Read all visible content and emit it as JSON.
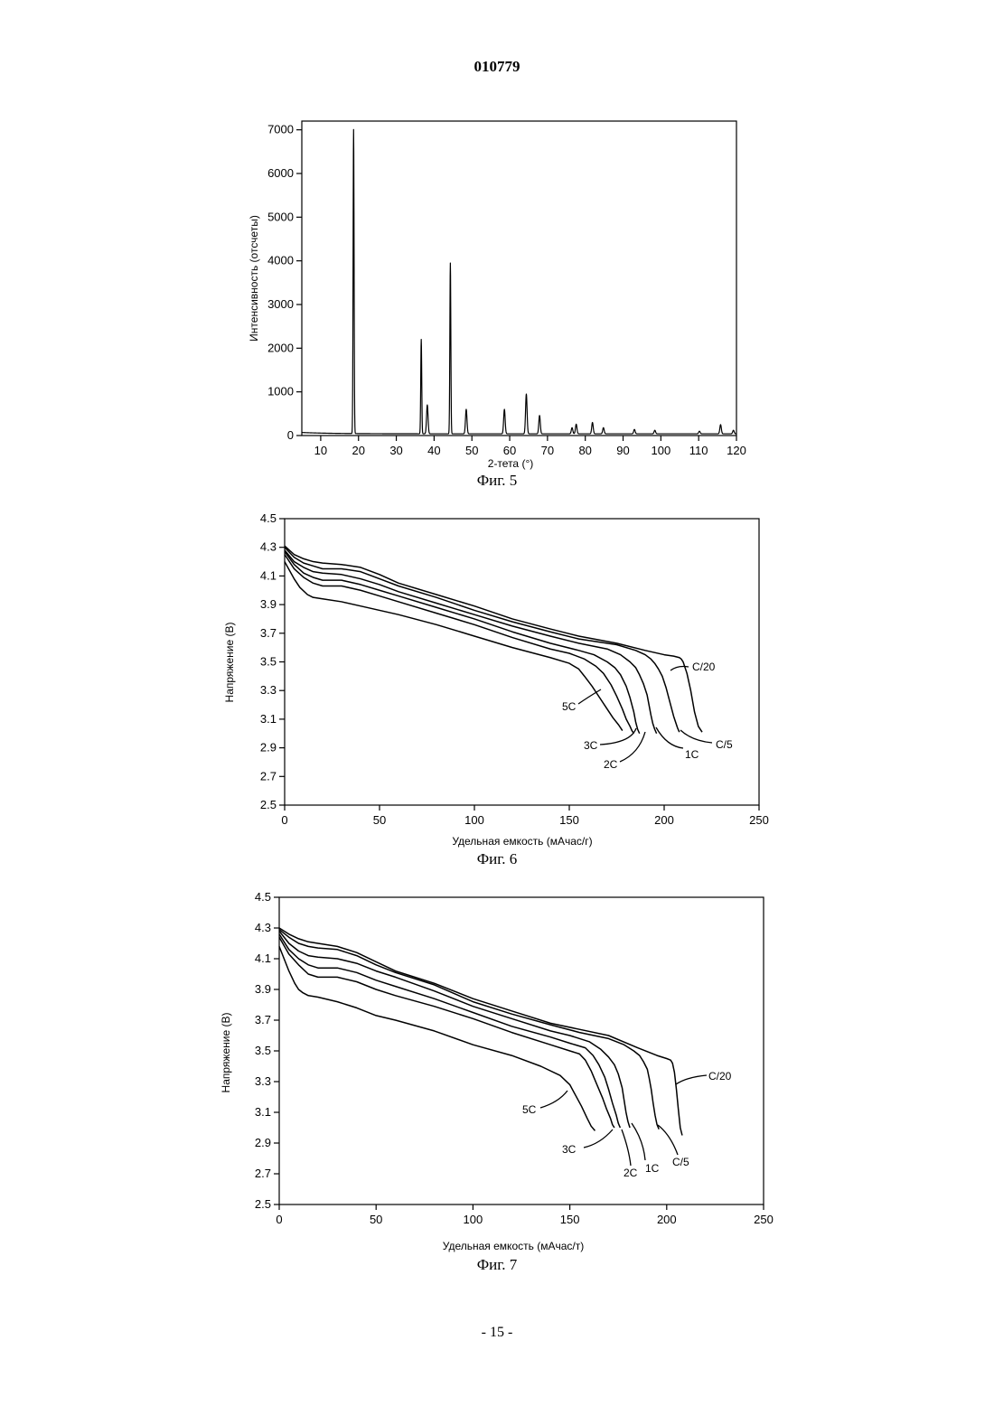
{
  "page": {
    "doc_number": "010779",
    "page_number": "- 15 -"
  },
  "figures": [
    {
      "caption": "Фиг. 5"
    },
    {
      "caption": "Фиг. 6"
    },
    {
      "caption": "Фиг. 7"
    }
  ],
  "chart_data": [
    {
      "type": "line",
      "xlabel": "2-тета (°)",
      "ylabel": "Интенсивность (отсчеты)",
      "xlim": [
        5,
        120
      ],
      "ylim": [
        0,
        7200
      ],
      "xticks": [
        10,
        20,
        30,
        40,
        50,
        60,
        70,
        80,
        90,
        100,
        110,
        120
      ],
      "yticks": [
        0,
        1000,
        2000,
        3000,
        4000,
        5000,
        6000,
        7000
      ],
      "baseline": 40,
      "peaks": [
        {
          "x": 18.7,
          "y": 7000
        },
        {
          "x": 36.6,
          "y": 2200
        },
        {
          "x": 38.2,
          "y": 700
        },
        {
          "x": 44.3,
          "y": 3950
        },
        {
          "x": 48.5,
          "y": 600
        },
        {
          "x": 58.6,
          "y": 600
        },
        {
          "x": 64.4,
          "y": 950
        },
        {
          "x": 67.9,
          "y": 460
        },
        {
          "x": 76.5,
          "y": 180
        },
        {
          "x": 77.6,
          "y": 260
        },
        {
          "x": 81.9,
          "y": 300
        },
        {
          "x": 84.8,
          "y": 180
        },
        {
          "x": 93.0,
          "y": 140
        },
        {
          "x": 98.4,
          "y": 120
        },
        {
          "x": 110.2,
          "y": 100
        },
        {
          "x": 115.8,
          "y": 250
        },
        {
          "x": 119.2,
          "y": 120
        }
      ]
    },
    {
      "type": "line",
      "xlabel": "Удельная емкость (мАчас/г)",
      "ylabel": "Напряжение (В)",
      "xlim": [
        0,
        250
      ],
      "ylim": [
        2.5,
        4.5
      ],
      "xticks": [
        0,
        50,
        100,
        150,
        200,
        250
      ],
      "yticks": [
        "2.5",
        "2.7",
        "2.9",
        "3.1",
        "3.3",
        "3.5",
        "3.7",
        "3.9",
        "4.1",
        "4.3",
        "4.5"
      ],
      "series": [
        {
          "name": "C/20",
          "x": [
            0,
            5,
            10,
            15,
            20,
            30,
            40,
            50,
            60,
            80,
            100,
            120,
            140,
            155,
            175,
            190,
            200,
            205,
            208,
            209,
            210,
            212,
            214,
            216,
            218,
            220
          ],
          "y": [
            4.31,
            4.25,
            4.22,
            4.2,
            4.19,
            4.18,
            4.16,
            4.11,
            4.05,
            3.97,
            3.89,
            3.8,
            3.73,
            3.68,
            3.63,
            3.58,
            3.55,
            3.54,
            3.53,
            3.52,
            3.5,
            3.42,
            3.3,
            3.15,
            3.05,
            3.01
          ]
        },
        {
          "name": "C/5",
          "x": [
            0,
            5,
            10,
            15,
            20,
            30,
            40,
            50,
            60,
            80,
            100,
            120,
            140,
            155,
            175,
            185,
            190,
            193,
            195,
            197,
            199,
            201,
            203,
            205,
            207,
            208
          ],
          "y": [
            4.3,
            4.23,
            4.19,
            4.17,
            4.15,
            4.15,
            4.13,
            4.08,
            4.03,
            3.95,
            3.86,
            3.78,
            3.71,
            3.66,
            3.62,
            3.58,
            3.55,
            3.52,
            3.49,
            3.45,
            3.4,
            3.32,
            3.22,
            3.12,
            3.04,
            3.01
          ]
        },
        {
          "name": "1C",
          "x": [
            0,
            5,
            10,
            15,
            20,
            30,
            40,
            50,
            60,
            80,
            100,
            120,
            140,
            155,
            170,
            177,
            182,
            185,
            187,
            189,
            191,
            192,
            193,
            194,
            195,
            196
          ],
          "y": [
            4.28,
            4.2,
            4.16,
            4.13,
            4.12,
            4.11,
            4.08,
            4.04,
            3.99,
            3.91,
            3.83,
            3.75,
            3.68,
            3.63,
            3.59,
            3.55,
            3.5,
            3.46,
            3.41,
            3.35,
            3.27,
            3.2,
            3.13,
            3.07,
            3.03,
            3.0
          ]
        },
        {
          "name": "2C",
          "x": [
            0,
            5,
            10,
            15,
            20,
            30,
            40,
            50,
            60,
            80,
            100,
            120,
            140,
            155,
            163,
            170,
            174,
            177,
            180,
            182,
            184,
            185,
            186,
            187
          ],
          "y": [
            4.27,
            4.18,
            4.12,
            4.09,
            4.07,
            4.07,
            4.04,
            4.0,
            3.96,
            3.88,
            3.8,
            3.71,
            3.63,
            3.58,
            3.55,
            3.5,
            3.46,
            3.41,
            3.33,
            3.25,
            3.15,
            3.08,
            3.03,
            3.0
          ]
        },
        {
          "name": "3C",
          "x": [
            0,
            5,
            10,
            15,
            20,
            30,
            40,
            50,
            60,
            80,
            100,
            120,
            140,
            150,
            158,
            164,
            168,
            172,
            175,
            178,
            180,
            182,
            183,
            184
          ],
          "y": [
            4.25,
            4.15,
            4.09,
            4.05,
            4.03,
            4.03,
            4.0,
            3.96,
            3.92,
            3.84,
            3.76,
            3.67,
            3.59,
            3.56,
            3.52,
            3.47,
            3.42,
            3.34,
            3.26,
            3.17,
            3.1,
            3.05,
            3.02,
            3.0
          ]
        },
        {
          "name": "5C",
          "x": [
            0,
            5,
            8,
            12,
            15,
            20,
            30,
            40,
            50,
            60,
            80,
            100,
            120,
            140,
            150,
            155,
            158,
            162,
            166,
            170,
            173,
            176,
            178
          ],
          "y": [
            4.2,
            4.08,
            4.02,
            3.97,
            3.95,
            3.94,
            3.92,
            3.89,
            3.86,
            3.83,
            3.76,
            3.68,
            3.6,
            3.53,
            3.49,
            3.45,
            3.4,
            3.33,
            3.25,
            3.17,
            3.11,
            3.06,
            3.02
          ]
        }
      ],
      "annotations": [
        "C/20",
        "C/5",
        "1C",
        "2C",
        "3C",
        "5C"
      ]
    },
    {
      "type": "line",
      "xlabel": "Удельная емкость (мАчас/т)",
      "ylabel": "Напряжение (В)",
      "xlim": [
        0,
        250
      ],
      "ylim": [
        2.5,
        4.5
      ],
      "xticks": [
        0,
        50,
        100,
        150,
        200,
        250
      ],
      "yticks": [
        "2.5",
        "2.7",
        "2.9",
        "3.1",
        "3.3",
        "3.5",
        "3.7",
        "3.9",
        "4.1",
        "4.3",
        "4.5"
      ],
      "series": [
        {
          "name": "C/20",
          "x": [
            0,
            5,
            10,
            15,
            20,
            30,
            40,
            50,
            60,
            80,
            100,
            120,
            140,
            155,
            170,
            185,
            195,
            200,
            202,
            203,
            204,
            205,
            206,
            207,
            208
          ],
          "y": [
            4.3,
            4.26,
            4.23,
            4.21,
            4.2,
            4.18,
            4.14,
            4.08,
            4.02,
            3.94,
            3.84,
            3.76,
            3.68,
            3.64,
            3.6,
            3.52,
            3.47,
            3.45,
            3.44,
            3.42,
            3.36,
            3.25,
            3.12,
            3.0,
            2.95
          ]
        },
        {
          "name": "C/5",
          "x": [
            0,
            5,
            10,
            15,
            20,
            30,
            40,
            50,
            60,
            80,
            100,
            120,
            140,
            155,
            170,
            178,
            183,
            186,
            188,
            190,
            191,
            192,
            193,
            194,
            195,
            196
          ],
          "y": [
            4.29,
            4.24,
            4.2,
            4.18,
            4.17,
            4.16,
            4.12,
            4.06,
            4.01,
            3.93,
            3.82,
            3.74,
            3.67,
            3.62,
            3.58,
            3.54,
            3.5,
            3.47,
            3.43,
            3.38,
            3.32,
            3.25,
            3.16,
            3.08,
            3.02,
            2.99
          ]
        },
        {
          "name": "1C",
          "x": [
            0,
            5,
            10,
            15,
            20,
            30,
            40,
            50,
            60,
            80,
            100,
            120,
            140,
            150,
            160,
            166,
            170,
            173,
            175,
            177,
            178,
            179,
            180,
            181
          ],
          "y": [
            4.28,
            4.2,
            4.15,
            4.12,
            4.11,
            4.1,
            4.07,
            4.02,
            3.98,
            3.89,
            3.79,
            3.71,
            3.63,
            3.6,
            3.56,
            3.51,
            3.46,
            3.41,
            3.35,
            3.26,
            3.18,
            3.1,
            3.04,
            3.0
          ]
        },
        {
          "name": "2C",
          "x": [
            0,
            5,
            10,
            15,
            20,
            30,
            40,
            50,
            60,
            80,
            100,
            120,
            140,
            150,
            158,
            162,
            165,
            168,
            170,
            172,
            174,
            175,
            176
          ],
          "y": [
            4.26,
            4.16,
            4.1,
            4.06,
            4.04,
            4.04,
            4.01,
            3.96,
            3.92,
            3.84,
            3.75,
            3.66,
            3.59,
            3.55,
            3.52,
            3.47,
            3.41,
            3.33,
            3.25,
            3.16,
            3.08,
            3.03,
            3.0
          ]
        },
        {
          "name": "3C",
          "x": [
            0,
            5,
            10,
            15,
            20,
            30,
            40,
            50,
            60,
            80,
            100,
            120,
            140,
            150,
            155,
            158,
            161,
            164,
            167,
            169,
            171,
            172,
            173
          ],
          "y": [
            4.24,
            4.13,
            4.06,
            4.0,
            3.98,
            3.98,
            3.95,
            3.9,
            3.86,
            3.79,
            3.71,
            3.62,
            3.54,
            3.5,
            3.48,
            3.44,
            3.37,
            3.28,
            3.19,
            3.12,
            3.06,
            3.02,
            3.0
          ]
        },
        {
          "name": "5C",
          "x": [
            0,
            5,
            8,
            10,
            12,
            15,
            20,
            30,
            40,
            50,
            60,
            80,
            100,
            120,
            135,
            145,
            150,
            153,
            156,
            159,
            161,
            163
          ],
          "y": [
            4.18,
            4.02,
            3.94,
            3.9,
            3.88,
            3.86,
            3.85,
            3.82,
            3.78,
            3.73,
            3.7,
            3.63,
            3.54,
            3.47,
            3.4,
            3.34,
            3.28,
            3.21,
            3.14,
            3.06,
            3.01,
            2.98
          ]
        }
      ],
      "annotations": [
        "C/20",
        "C/5",
        "1C",
        "2C",
        "3C",
        "5C"
      ]
    }
  ]
}
